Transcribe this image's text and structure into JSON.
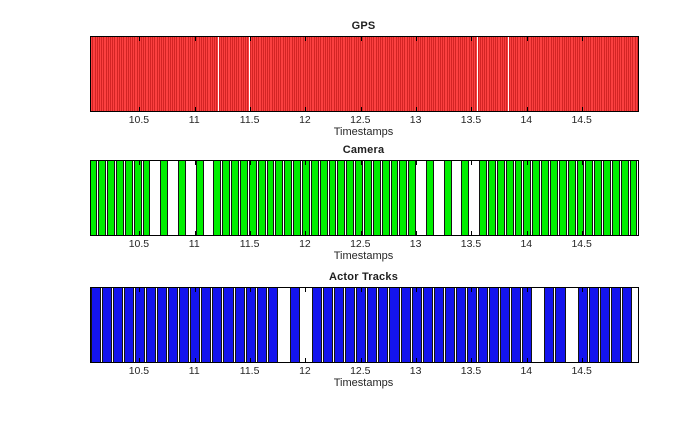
{
  "figure": {
    "background": "#ffffff",
    "text_color": "#262626"
  },
  "chart_data": [
    {
      "type": "event-timeline",
      "title": "GPS",
      "xlabel": "Timestamps",
      "color": "#fb4040",
      "edge_color": "#d32424",
      "render": "dense",
      "xlim": [
        10.058,
        15.0
      ],
      "xticks": [
        10.5,
        11,
        11.5,
        12,
        12.5,
        13,
        13.5,
        14,
        14.5
      ],
      "xtick_labels": [
        "10.5",
        "11",
        "11.5",
        "12",
        "12.5",
        "13",
        "13.5",
        "14",
        "14.5"
      ],
      "events": {
        "start": 10.06,
        "interval": 0.02,
        "count": 248
      },
      "dropouts": []
    },
    {
      "type": "event-timeline",
      "title": "Camera",
      "xlabel": "Timestamps",
      "color": "#00ef00",
      "edge_color": "#141414",
      "render": "bars",
      "xlim": [
        10.058,
        15.0
      ],
      "xticks": [
        10.5,
        11,
        11.5,
        12,
        12.5,
        13,
        13.5,
        14,
        14.5
      ],
      "xtick_labels": [
        "10.5",
        "11",
        "11.5",
        "12",
        "12.5",
        "13",
        "13.5",
        "14",
        "14.5"
      ],
      "events": {
        "start": 10.08,
        "interval": 0.08,
        "count": 62
      },
      "dropouts": [
        10.64,
        10.8,
        10.96,
        11.12,
        13.04,
        13.2,
        13.36,
        13.52
      ]
    },
    {
      "type": "event-timeline",
      "title": "Actor Tracks",
      "xlabel": "Timestamps",
      "color": "#1414ee",
      "edge_color": "#141414",
      "render": "bars",
      "xlim": [
        10.058,
        15.0
      ],
      "xticks": [
        10.5,
        11,
        11.5,
        12,
        12.5,
        13,
        13.5,
        14,
        14.5
      ],
      "xtick_labels": [
        "10.5",
        "11",
        "11.5",
        "12",
        "12.5",
        "13",
        "13.5",
        "14",
        "14.5"
      ],
      "events": {
        "start": 10.1,
        "interval": 0.1,
        "count": 49
      },
      "dropouts": [
        11.8,
        12.0,
        14.1,
        14.4
      ]
    }
  ]
}
